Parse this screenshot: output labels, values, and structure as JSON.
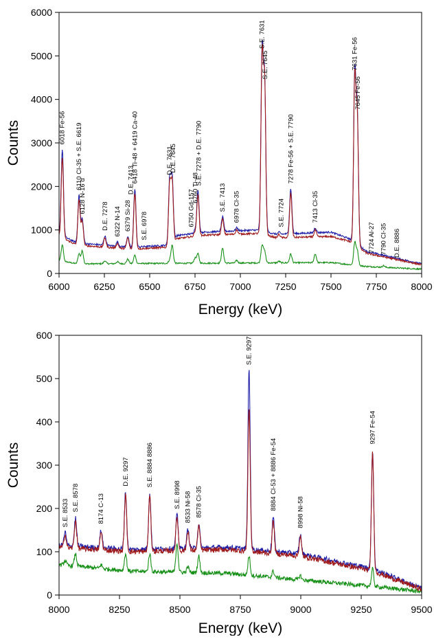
{
  "chart_data": [
    {
      "type": "line",
      "xlabel": "Energy (keV)",
      "ylabel": "Counts",
      "xlim": [
        6000,
        8000
      ],
      "ylim": [
        0,
        6000
      ],
      "xticks": [
        6000,
        6250,
        6500,
        6750,
        7000,
        7250,
        7500,
        7750,
        8000
      ],
      "yticks": [
        0,
        1000,
        2000,
        3000,
        4000,
        5000,
        6000
      ],
      "grid": false,
      "series_colors": {
        "blue": "#1f1fa8",
        "red": "#a11a1a",
        "green": "#169016"
      },
      "series": [
        {
          "color": "blue",
          "baseline": [
            [
              6000,
              900
            ],
            [
              6100,
              700
            ],
            [
              6400,
              600
            ],
            [
              6600,
              650
            ],
            [
              6650,
              870
            ],
            [
              6800,
              950
            ],
            [
              7100,
              1000
            ],
            [
              7200,
              900
            ],
            [
              7500,
              950
            ],
            [
              7600,
              800
            ],
            [
              7700,
              500
            ],
            [
              8000,
              220
            ]
          ]
        },
        {
          "color": "red",
          "baseline": [
            [
              6000,
              850
            ],
            [
              6100,
              650
            ],
            [
              6400,
              560
            ],
            [
              6600,
              600
            ],
            [
              6650,
              800
            ],
            [
              6800,
              880
            ],
            [
              7100,
              920
            ],
            [
              7200,
              820
            ],
            [
              7500,
              850
            ],
            [
              7600,
              740
            ],
            [
              7700,
              460
            ],
            [
              8000,
              200
            ]
          ]
        },
        {
          "color": "green",
          "baseline": [
            [
              6000,
              300
            ],
            [
              6100,
              220
            ],
            [
              6500,
              230
            ],
            [
              7000,
              240
            ],
            [
              7500,
              250
            ],
            [
              7700,
              160
            ],
            [
              8000,
              100
            ]
          ]
        }
      ],
      "peaks": [
        {
          "x": 6018,
          "blue": 2850,
          "red": 2650,
          "green": 650
        },
        {
          "x": 6110,
          "blue": 1800,
          "red": 1700,
          "green": 450
        },
        {
          "x": 6128,
          "blue": 1250,
          "red": 1200,
          "green": 520
        },
        {
          "x": 6253,
          "blue": 860,
          "red": 820,
          "green": 290
        },
        {
          "x": 6322,
          "blue": 720,
          "red": 690,
          "green": 270
        },
        {
          "x": 6379,
          "blue": 850,
          "red": 820,
          "green": 330
        },
        {
          "x": 6418,
          "blue": 1950,
          "red": 1850,
          "green": 420
        },
        {
          "x": 6610,
          "blue": 2150,
          "red": 2050,
          "green": 300
        },
        {
          "x": 6624,
          "blue": 2200,
          "red": 2100,
          "green": 650
        },
        {
          "x": 6750,
          "blue": 1000,
          "red": 950,
          "green": 350
        },
        {
          "x": 6766,
          "blue": 1900,
          "red": 1800,
          "green": 450
        },
        {
          "x": 6902,
          "blue": 1300,
          "red": 1250,
          "green": 580
        },
        {
          "x": 6980,
          "blue": 1050,
          "red": 1000,
          "green": 300
        },
        {
          "x": 7120,
          "blue": 5050,
          "red": 4950,
          "green": 650
        },
        {
          "x": 7134,
          "blue": 4350,
          "red": 4300,
          "green": 500
        },
        {
          "x": 7213,
          "blue": 950,
          "red": 900,
          "green": 280
        },
        {
          "x": 7278,
          "blue": 1950,
          "red": 1850,
          "green": 450
        },
        {
          "x": 7413,
          "blue": 1050,
          "red": 1000,
          "green": 450
        },
        {
          "x": 7631,
          "blue": 4550,
          "red": 4450,
          "green": 700
        },
        {
          "x": 7645,
          "blue": 3650,
          "red": 3550,
          "green": 520
        },
        {
          "x": 7724,
          "blue": 350,
          "red": 320,
          "green": 120
        },
        {
          "x": 7790,
          "blue": 320,
          "red": 300,
          "green": 180
        },
        {
          "x": 7864,
          "blue": 260,
          "red": 240,
          "green": 90
        }
      ],
      "annotations": [
        {
          "x": 6018,
          "y": 2900,
          "text": "6018 Fe-56"
        },
        {
          "x": 6110,
          "y": 1850,
          "text": "6110 Cl-35 + S.E. 6619"
        },
        {
          "x": 6128,
          "y": 1300,
          "text": "6128 N-16 α"
        },
        {
          "x": 6253,
          "y": 920,
          "text": "D.E. 7278"
        },
        {
          "x": 6322,
          "y": 780,
          "text": "6322 N-14"
        },
        {
          "x": 6379,
          "y": 900,
          "text": "6379 Si-28"
        },
        {
          "x": 6395,
          "y": 1750,
          "text": "D.E. 7413"
        },
        {
          "x": 6418,
          "y": 2000,
          "text": "6418 Ti-48 + 6419 Ca-40"
        },
        {
          "x": 6470,
          "y": 700,
          "text": "S.E. 6978"
        },
        {
          "x": 6610,
          "y": 2200,
          "text": "D.E. 7631"
        },
        {
          "x": 6628,
          "y": 2250,
          "text": "D.E. 7645"
        },
        {
          "x": 6730,
          "y": 1000,
          "text": "6750 Gd-157"
        },
        {
          "x": 6752,
          "y": 1550,
          "text": "6760 Ti-48"
        },
        {
          "x": 6770,
          "y": 1950,
          "text": "S.E. 7278 + D.E. 7790"
        },
        {
          "x": 6902,
          "y": 1350,
          "text": "S.E. 7413"
        },
        {
          "x": 6980,
          "y": 1100,
          "text": "6978 Cl-35"
        },
        {
          "x": 7120,
          "y": 5100,
          "text": "S.E. 7631"
        },
        {
          "x": 7136,
          "y": 4400,
          "text": "S.E. 7645"
        },
        {
          "x": 7225,
          "y": 1000,
          "text": "S.E. 7724"
        },
        {
          "x": 7278,
          "y": 2000,
          "text": "7278 Fe-56 + S.E. 7790"
        },
        {
          "x": 7413,
          "y": 1100,
          "text": "7413 Cl-35"
        },
        {
          "x": 7631,
          "y": 4600,
          "text": "7631 Fe-56"
        },
        {
          "x": 7647,
          "y": 3700,
          "text": "7645 Fe-56"
        },
        {
          "x": 7724,
          "y": 400,
          "text": "7724 Al-27"
        },
        {
          "x": 7790,
          "y": 360,
          "text": "7790 Cl-35"
        },
        {
          "x": 7864,
          "y": 300,
          "text": "D.E. 8886"
        }
      ]
    },
    {
      "type": "line",
      "xlabel": "Energy (keV)",
      "ylabel": "Counts",
      "xlim": [
        8000,
        9500
      ],
      "ylim": [
        0,
        600
      ],
      "xticks": [
        8000,
        8250,
        8500,
        8750,
        9000,
        9250,
        9500
      ],
      "yticks": [
        0,
        100,
        200,
        300,
        400,
        500,
        600
      ],
      "grid": false,
      "series_colors": {
        "blue": "#1f1fa8",
        "red": "#a11a1a",
        "green": "#169016"
      },
      "series": [
        {
          "color": "blue",
          "baseline": [
            [
              8000,
              115
            ],
            [
              8300,
              105
            ],
            [
              8700,
              110
            ],
            [
              9000,
              95
            ],
            [
              9300,
              60
            ],
            [
              9500,
              15
            ]
          ]
        },
        {
          "color": "red",
          "baseline": [
            [
              8000,
              110
            ],
            [
              8300,
              100
            ],
            [
              8700,
              105
            ],
            [
              9000,
              90
            ],
            [
              9300,
              55
            ],
            [
              9500,
              13
            ]
          ]
        },
        {
          "color": "green",
          "baseline": [
            [
              8000,
              70
            ],
            [
              8300,
              55
            ],
            [
              8700,
              50
            ],
            [
              9000,
              35
            ],
            [
              9300,
              20
            ],
            [
              9500,
              8
            ]
          ]
        }
      ],
      "peaks": [
        {
          "x": 8025,
          "blue": 145,
          "red": 140,
          "green": 80
        },
        {
          "x": 8068,
          "blue": 178,
          "red": 172,
          "green": 95
        },
        {
          "x": 8174,
          "blue": 150,
          "red": 145,
          "green": 70
        },
        {
          "x": 8275,
          "blue": 238,
          "red": 230,
          "green": 95
        },
        {
          "x": 8375,
          "blue": 235,
          "red": 228,
          "green": 95
        },
        {
          "x": 8488,
          "blue": 185,
          "red": 180,
          "green": 120
        },
        {
          "x": 8533,
          "blue": 152,
          "red": 148,
          "green": 65
        },
        {
          "x": 8578,
          "blue": 165,
          "red": 160,
          "green": 90
        },
        {
          "x": 8786,
          "blue": 520,
          "red": 430,
          "green": 90
        },
        {
          "x": 8886,
          "blue": 180,
          "red": 170,
          "green": 55
        },
        {
          "x": 8998,
          "blue": 140,
          "red": 135,
          "green": 45
        },
        {
          "x": 9297,
          "blue": 335,
          "red": 330,
          "green": 60
        }
      ],
      "annotations": [
        {
          "x": 8025,
          "y": 150,
          "text": "S.E. 8533"
        },
        {
          "x": 8068,
          "y": 185,
          "text": "S.E. 8578"
        },
        {
          "x": 8174,
          "y": 158,
          "text": "8174 C-13"
        },
        {
          "x": 8275,
          "y": 245,
          "text": "D.E. 9297"
        },
        {
          "x": 8375,
          "y": 242,
          "text": "S.E. 8884 8886"
        },
        {
          "x": 8488,
          "y": 192,
          "text": "S.E. 8998"
        },
        {
          "x": 8533,
          "y": 160,
          "text": "8533 Ni-58"
        },
        {
          "x": 8578,
          "y": 172,
          "text": "8578 Cl-35"
        },
        {
          "x": 8786,
          "y": 525,
          "text": "S.E. 9297"
        },
        {
          "x": 8886,
          "y": 188,
          "text": "8884 Cl-53 + 8886 Fe-54"
        },
        {
          "x": 8998,
          "y": 148,
          "text": "8998 Ni-58"
        },
        {
          "x": 9297,
          "y": 342,
          "text": "9297 Fe-54"
        }
      ]
    }
  ]
}
